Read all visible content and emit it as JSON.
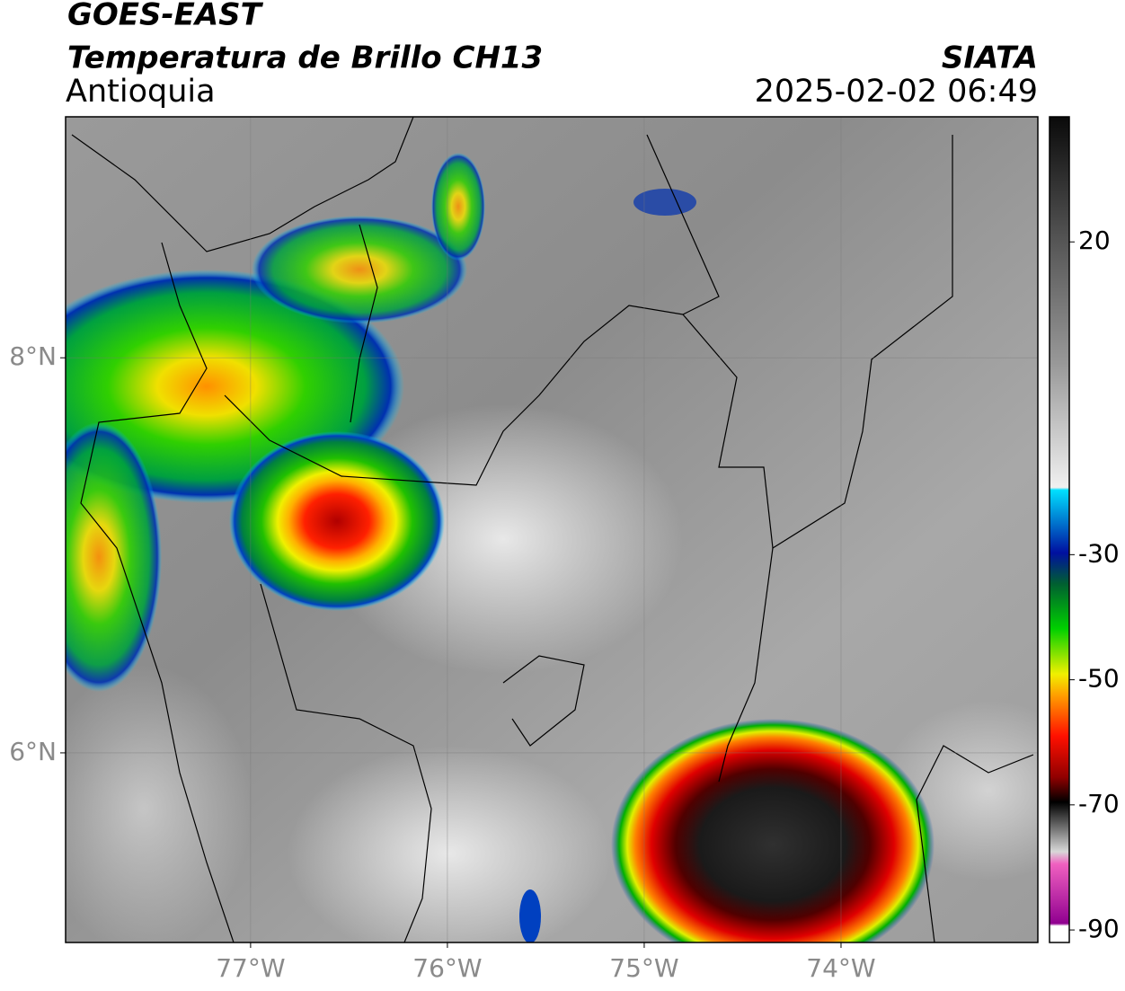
{
  "header": {
    "title": "GOES-EAST",
    "subtitle": "Temperatura de Brillo CH13",
    "region": "Antioquia",
    "source": "SIATA",
    "datetime": "2025-02-02 06:49"
  },
  "map": {
    "xlim": [
      -77.94,
      -73.0
    ],
    "ylim": [
      5.04,
      9.22
    ],
    "xticks": [
      {
        "value": -77,
        "label": "77°W"
      },
      {
        "value": -76,
        "label": "76°W"
      },
      {
        "value": -75,
        "label": "75°W"
      },
      {
        "value": -74,
        "label": "74°W"
      }
    ],
    "yticks": [
      {
        "value": 8,
        "label": "8°N"
      },
      {
        "value": 6,
        "label": "6°N"
      }
    ],
    "grid": true
  },
  "colorbar": {
    "lim": [
      -92,
      40
    ],
    "ticks": [
      20,
      -30,
      -50,
      -70,
      -90
    ]
  }
}
